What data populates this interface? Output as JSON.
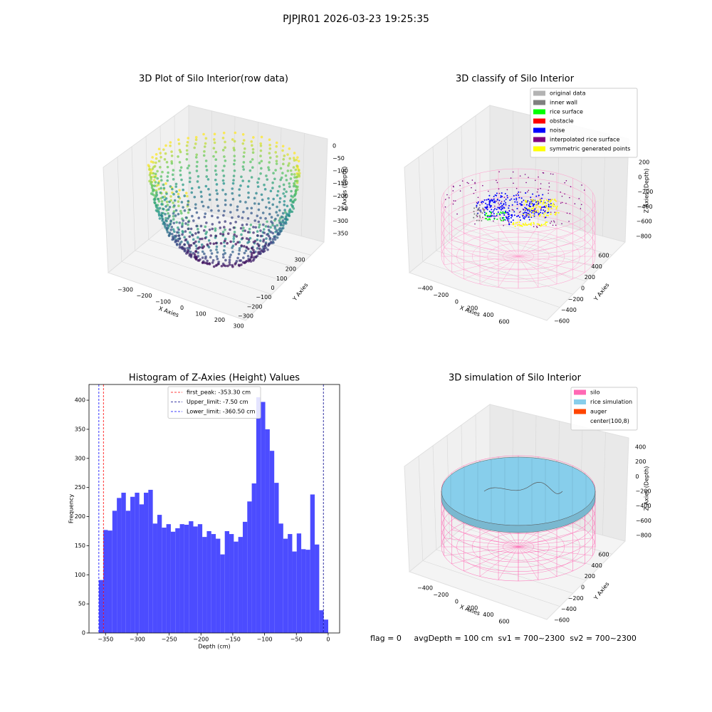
{
  "title": "PJPJR01 2026-03-23 19:25:35",
  "footer": "flag = 0     avgDepth = 100 cm  sv1 = 700~2300  sv2 = 700~2300",
  "chart_data": [
    {
      "type": "scatter3d",
      "title": "3D Plot of Silo Interior(row data)",
      "xlabel": "X Axies",
      "ylabel": "Y Axies",
      "zlabel": "Z Axies (Depth)",
      "xticks": [
        {
          "value": -300,
          "label": "−300"
        },
        {
          "value": -200,
          "label": "−200"
        },
        {
          "value": -100,
          "label": "−100"
        },
        0,
        100,
        200,
        300
      ],
      "yticks": [
        {
          "value": -300,
          "label": "−300"
        },
        {
          "value": -200,
          "label": "−200"
        },
        {
          "value": -100,
          "label": "−100"
        },
        0,
        100,
        200,
        300
      ],
      "zticks": [
        0,
        {
          "value": -50,
          "label": "−50"
        },
        {
          "value": -100,
          "label": "−100"
        },
        {
          "value": -150,
          "label": "−150"
        },
        {
          "value": -200,
          "label": "−200"
        },
        {
          "value": -250,
          "label": "−250"
        },
        {
          "value": -300,
          "label": "−300"
        },
        {
          "value": -350,
          "label": "−350"
        }
      ]
    },
    {
      "type": "classify3d",
      "title": "3D classify of Silo Interior",
      "xlabel": "X Axies",
      "ylabel": "Y Axies",
      "zlabel": "Z Axies (Depth)",
      "series": [
        {
          "name": "original data",
          "color": "#b3b3b3"
        },
        {
          "name": "inner wall",
          "color": "#808080"
        },
        {
          "name": "rice surface",
          "color": "#00ff00"
        },
        {
          "name": "obstacle",
          "color": "#ff0000"
        },
        {
          "name": "noise",
          "color": "#0000ff"
        },
        {
          "name": "interpolated rice surface",
          "color": "#800080"
        },
        {
          "name": "symmetric generated points",
          "color": "#ffff00"
        }
      ],
      "xticks": [
        {
          "value": -400,
          "label": "−400"
        },
        {
          "value": -200,
          "label": "−200"
        },
        0,
        200,
        400,
        600
      ],
      "yticks": [
        {
          "value": -600,
          "label": "−600"
        },
        {
          "value": -400,
          "label": "−400"
        },
        {
          "value": -200,
          "label": "−200"
        },
        0,
        200,
        400,
        600
      ],
      "zticks": [
        200,
        0,
        {
          "value": -200,
          "label": "−200"
        },
        {
          "value": -400,
          "label": "−400"
        },
        {
          "value": -600,
          "label": "−600"
        },
        {
          "value": -800,
          "label": "−800"
        }
      ]
    },
    {
      "type": "histogram",
      "title": "Histogram of Z-Axies (Height) Values",
      "xlabel": "Depth (cm)",
      "ylabel": "Frequency",
      "color": "#4c4cff",
      "bins": [
        -360.5,
        -353.43,
        -346.36,
        -339.29,
        -332.22,
        -325.15,
        -318.08,
        -311.01,
        -303.94,
        -296.87,
        -289.8,
        -282.73,
        -275.66,
        -268.59,
        -261.52,
        -254.45,
        -247.38,
        -240.31,
        -233.24,
        -226.17,
        -219.1,
        -212.03,
        -204.96,
        -197.89,
        -190.82,
        -183.75,
        -176.68,
        -169.61,
        -162.54,
        -155.47,
        -148.4,
        -141.33,
        -134.26,
        -127.19,
        -120.12,
        -113.05,
        -105.98,
        -98.91,
        -91.84,
        -84.77,
        -77.7,
        -70.63,
        -63.56,
        -56.49,
        -49.42,
        -42.35,
        -35.28,
        -28.21,
        -21.14,
        -14.07,
        -7.0,
        0.07
      ],
      "values": [
        91,
        177,
        176,
        210,
        232,
        241,
        210,
        234,
        241,
        221,
        241,
        246,
        188,
        203,
        181,
        187,
        174,
        180,
        187,
        186,
        192,
        183,
        187,
        165,
        175,
        170,
        162,
        135,
        175,
        170,
        157,
        165,
        191,
        226,
        257,
        405,
        397,
        350,
        313,
        258,
        188,
        162,
        170,
        140,
        171,
        144,
        143,
        238,
        152,
        39,
        23
      ],
      "lines": [
        {
          "name": "first_peak: -353.30 cm",
          "value": -353.3,
          "color": "#ff0000"
        },
        {
          "name": "Upper_limit: -7.50 cm",
          "value": -7.5,
          "color": "#00008b"
        },
        {
          "name": "Lower_limit: -360.50 cm",
          "value": -360.5,
          "color": "#0000ff"
        }
      ],
      "xlim": [
        -376,
        18
      ],
      "ylim": [
        0,
        427
      ],
      "xticks": [
        {
          "value": -350,
          "label": "−350"
        },
        {
          "value": -300,
          "label": "−300"
        },
        {
          "value": -250,
          "label": "−250"
        },
        {
          "value": -200,
          "label": "−200"
        },
        {
          "value": -150,
          "label": "−150"
        },
        {
          "value": -100,
          "label": "−100"
        },
        {
          "value": -50,
          "label": "−50"
        },
        0
      ],
      "yticks": [
        0,
        50,
        100,
        150,
        200,
        250,
        300,
        350,
        400
      ],
      "legend": "upper center"
    },
    {
      "type": "surface3d",
      "title": "3D simulation of Silo Interior",
      "xlabel": "X Axies",
      "ylabel": "Y Axies",
      "zlabel": "Z Axies (Depth)",
      "series": [
        {
          "name": "silo",
          "color": "#ff69b4"
        },
        {
          "name": "rice simulation",
          "color": "#87ceeb"
        },
        {
          "name": "auger",
          "color": "#ff4500"
        },
        {
          "name": "center(100,8)",
          "color": "#ffffff"
        }
      ],
      "xticks": [
        {
          "value": -400,
          "label": "−400"
        },
        {
          "value": -200,
          "label": "−200"
        },
        0,
        200,
        400,
        600
      ],
      "yticks": [
        {
          "value": -600,
          "label": "−600"
        },
        {
          "value": -400,
          "label": "−400"
        },
        {
          "value": -200,
          "label": "−200"
        },
        0,
        200,
        400,
        600
      ],
      "zticks": [
        400,
        200,
        0,
        {
          "value": -200,
          "label": "−200"
        },
        {
          "value": -400,
          "label": "−400"
        },
        {
          "value": -600,
          "label": "−600"
        },
        {
          "value": -800,
          "label": "−800"
        }
      ]
    }
  ]
}
